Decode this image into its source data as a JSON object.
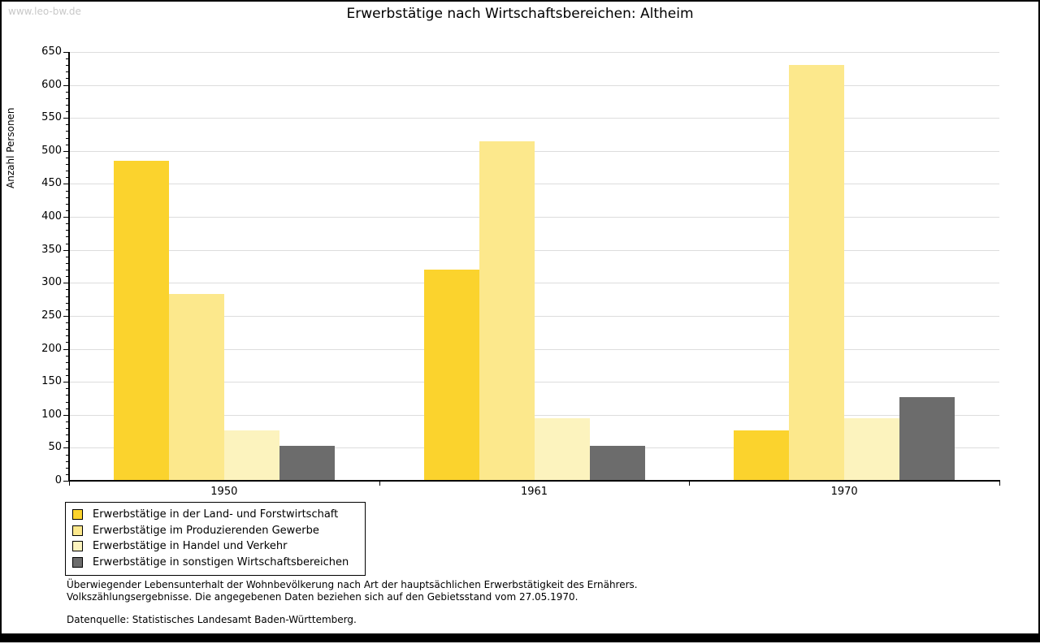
{
  "watermark": "www.leo-bw.de",
  "title": "Erwerbstätige nach Wirtschaftsbereichen: Altheim",
  "chart_data": {
    "type": "bar",
    "title": "Erwerbstätige nach Wirtschaftsbereichen: Altheim",
    "xlabel": "",
    "ylabel": "Anzahl Personen",
    "ylim": [
      0,
      650
    ],
    "ytick_step": 50,
    "yminor_step": 10,
    "grid": true,
    "legend_position": "bottom-left",
    "categories": [
      "1950",
      "1961",
      "1970"
    ],
    "series": [
      {
        "name": "Erwerbstätige in der Land- und Forstwirtschaft",
        "color": "#FBD32D",
        "values": [
          485,
          320,
          76
        ]
      },
      {
        "name": "Erwerbstätige im Produzierenden Gewerbe",
        "color": "#FCE88C",
        "values": [
          283,
          515,
          630
        ]
      },
      {
        "name": "Erwerbstätige in Handel und Verkehr",
        "color": "#FCF3BE",
        "values": [
          76,
          95,
          95
        ]
      },
      {
        "name": "Erwerbstätige in sonstigen Wirtschaftsbereichen",
        "color": "#6C6C6C",
        "values": [
          53,
          53,
          127
        ]
      }
    ]
  },
  "footnotes": {
    "line1": "Überwiegender Lebensunterhalt der Wohnbevölkerung nach Art der hauptsächlichen Erwerbstätigkeit des Ernährers.",
    "line2": "Volkszählungsergebnisse. Die angegebenen Daten beziehen sich auf den Gebietsstand vom 27.05.1970.",
    "source": "Datenquelle: Statistisches Landesamt Baden-Württemberg."
  },
  "colors": {
    "background": "#FFFFFF",
    "border": "#000000",
    "grid": "#DDDDDD",
    "axis": "#000000",
    "watermark": "#C8C8C8"
  }
}
